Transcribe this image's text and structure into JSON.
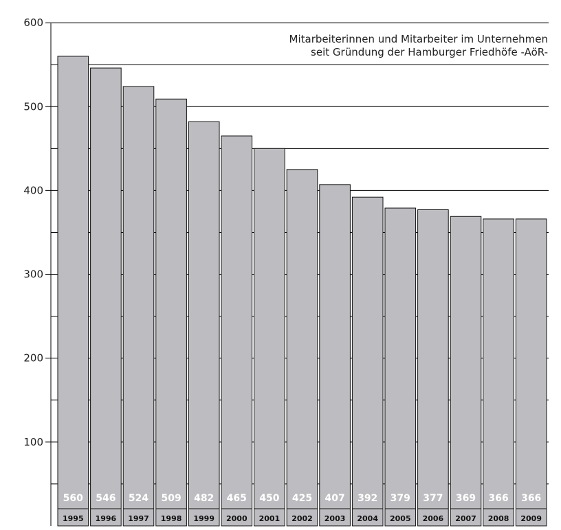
{
  "chart_data": {
    "type": "bar",
    "title": "Mitarbeiterinnen und Mitarbeiter im Unternehmen",
    "subtitle": "seit Gründung der Hamburger Friedhöfe -AöR-",
    "categories": [
      "1995",
      "1996",
      "1997",
      "1998",
      "1999",
      "2000",
      "2001",
      "2002",
      "2003",
      "2004",
      "2005",
      "2006",
      "2007",
      "2008",
      "2009"
    ],
    "values": [
      560,
      546,
      524,
      509,
      482,
      465,
      450,
      425,
      407,
      392,
      379,
      377,
      369,
      366,
      366
    ],
    "ylim": [
      0,
      600
    ],
    "yticks": [
      100,
      200,
      300,
      400,
      500,
      600
    ],
    "grid": true,
    "bar_color": "#bdbdc1",
    "xlabel": "",
    "ylabel": ""
  }
}
